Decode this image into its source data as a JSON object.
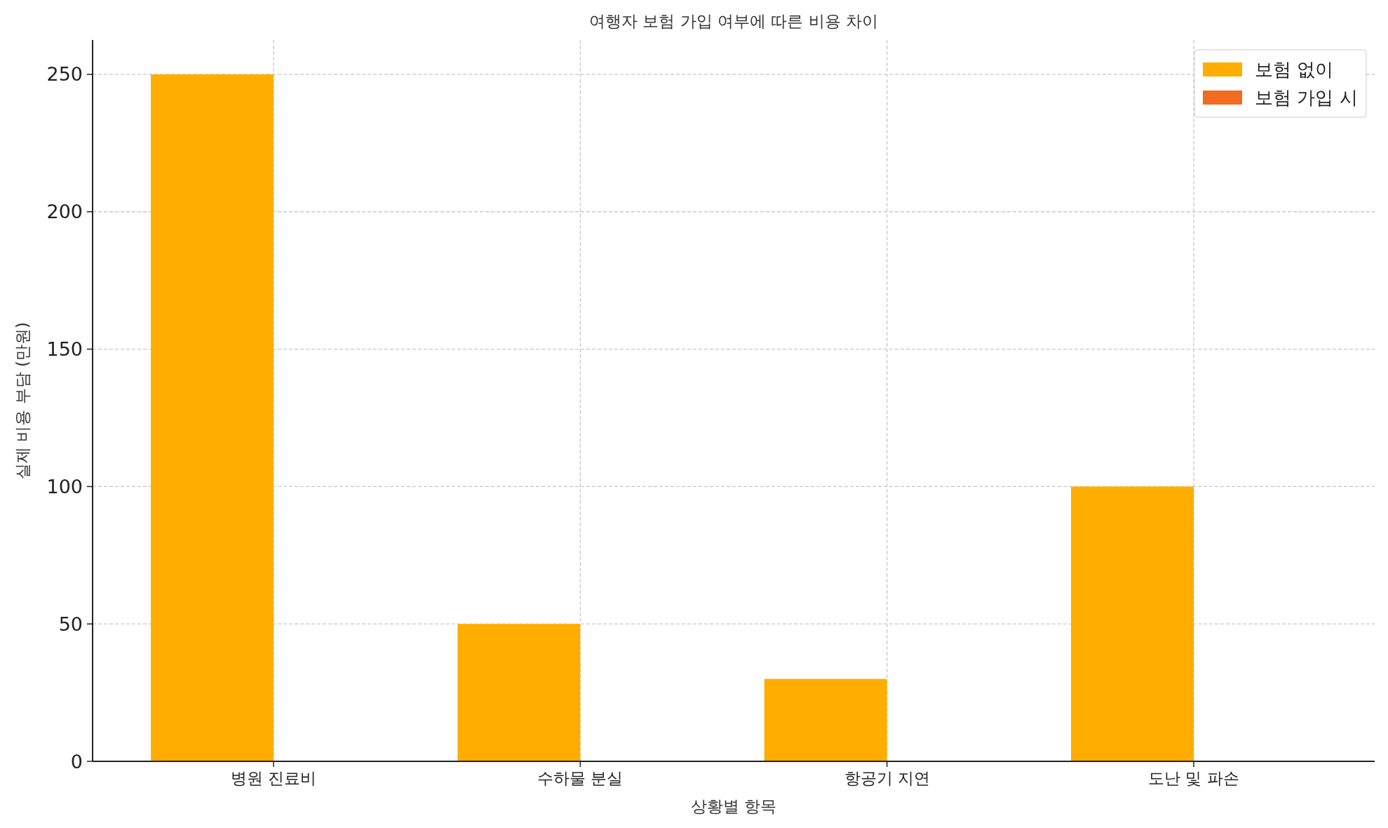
{
  "chart_data": {
    "type": "bar",
    "title": "여행자 보험 가입 여부에 따른 비용 차이",
    "xlabel": "상황별 항목",
    "ylabel": "실제 비용 부담 (만원)",
    "categories": [
      "병원 진료비",
      "수하물 분실",
      "항공기 지연",
      "도난 및 파손"
    ],
    "series": [
      {
        "name": "보험 없이",
        "color": "#ffae00",
        "values": [
          250,
          50,
          30,
          100
        ]
      },
      {
        "name": "보험 가입 시",
        "color": "#f26b21",
        "values": [
          0,
          0,
          0,
          0
        ]
      }
    ],
    "ylim": [
      0,
      262.5
    ],
    "yticks": [
      0,
      50,
      100,
      150,
      200,
      250
    ],
    "grid": true,
    "legend": "top right"
  }
}
